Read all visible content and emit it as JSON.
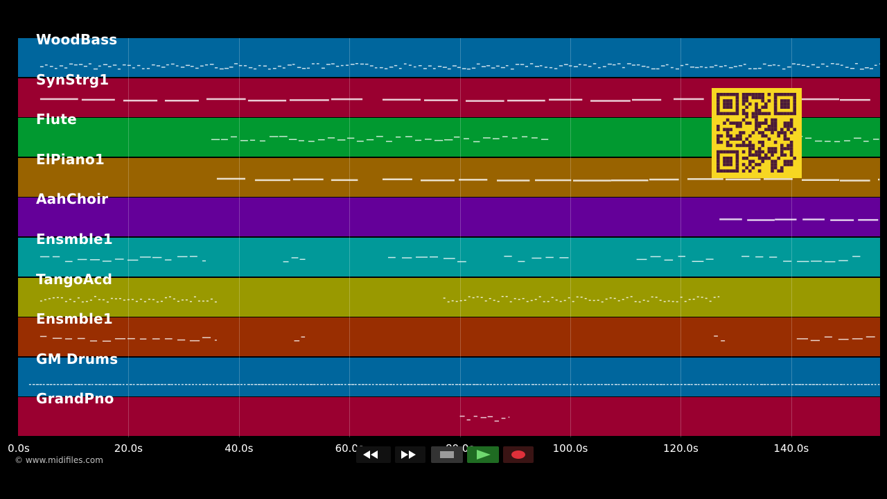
{
  "app": {
    "copyright": "© www.midifiles.com"
  },
  "tracks": [
    {
      "name": "WoodBass",
      "color": "#00669d"
    },
    {
      "name": "SynStrg1",
      "color": "#9a0030"
    },
    {
      "name": "Flute",
      "color": "#019930"
    },
    {
      "name": "ElPiano1",
      "color": "#996300"
    },
    {
      "name": "AahChoir",
      "color": "#640099"
    },
    {
      "name": "Ensmble1",
      "color": "#019999"
    },
    {
      "name": "TangoAcd",
      "color": "#999900"
    },
    {
      "name": "Ensmble1",
      "color": "#992e01"
    },
    {
      "name": "GM Drums",
      "color": "#00669d"
    },
    {
      "name": "GrandPno",
      "color": "#9a0030"
    }
  ],
  "timeline": {
    "ticks": [
      "0.0s",
      "20.0s",
      "40.0s",
      "60.0s",
      "80.0s",
      "100.0s",
      "120.0s",
      "140.0s"
    ]
  },
  "transport": {
    "rewind_icon": "rewind-icon",
    "fast_forward_icon": "fast-forward-icon",
    "stop_icon": "stop-icon",
    "play_icon": "play-icon",
    "record_icon": "record-icon"
  },
  "qr_icon": "qr-code-icon"
}
